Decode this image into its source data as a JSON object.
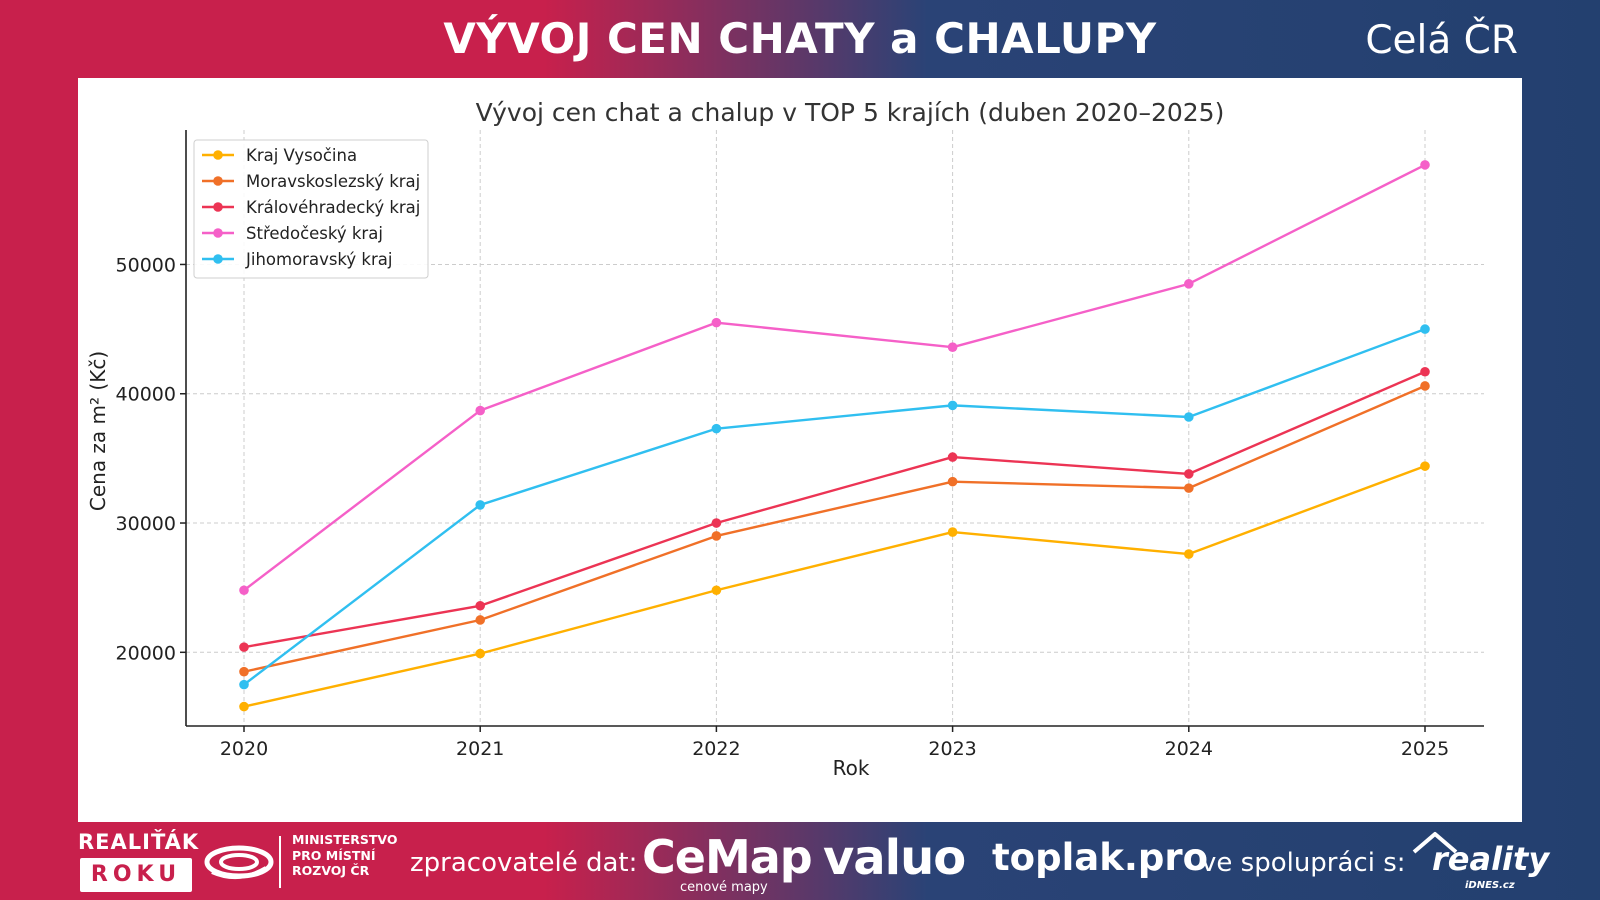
{
  "header": {
    "title": "VÝVOJ CEN CHATY a CHALUPY",
    "region": "Celá ČR"
  },
  "colors": {
    "bg_left": "#c8204c",
    "bg_right": "#23406f",
    "series": [
      "#ffb000",
      "#f07028",
      "#ec3454",
      "#f560c8",
      "#30bff0"
    ]
  },
  "chart_data": {
    "type": "line",
    "title": "Vývoj cen chat a chalup v TOP 5 krajích (duben 2020–2025)",
    "xlabel": "Rok",
    "ylabel": "Cena za m² (Kč)",
    "x": [
      "2020",
      "2021",
      "2022",
      "2023",
      "2024",
      "2025"
    ],
    "yticks": [
      "20000",
      "30000",
      "40000",
      "50000"
    ],
    "ylim": [
      14300,
      60400
    ],
    "grid": true,
    "legend_position": "top-left",
    "series": [
      {
        "name": "Kraj Vysočina",
        "color": "#ffb000",
        "values": [
          15800,
          19900,
          24800,
          29300,
          27600,
          34400
        ]
      },
      {
        "name": "Moravskoslezský kraj",
        "color": "#f07028",
        "values": [
          18500,
          22500,
          29000,
          33200,
          32700,
          40600
        ]
      },
      {
        "name": "Královéhradecký kraj",
        "color": "#ec3454",
        "values": [
          20400,
          23600,
          30000,
          35100,
          33800,
          41700
        ]
      },
      {
        "name": "Středočeský kraj",
        "color": "#f560c8",
        "values": [
          24800,
          38700,
          45500,
          43600,
          48500,
          57700
        ]
      },
      {
        "name": "Jihomoravský kraj",
        "color": "#30bff0",
        "values": [
          17500,
          31400,
          37300,
          39100,
          38200,
          45000
        ]
      }
    ]
  },
  "footer": {
    "realitak": "REALIŤÁK",
    "roku": "ROKU",
    "ministry_line1": "MINISTERSTVO",
    "ministry_line2": "PRO MÍSTNÍ",
    "ministry_line3": "ROZVOJ ČR",
    "data_label": "zpracovatelé dat:",
    "cemap": "CeMap",
    "cemap_sub": "cenové mapy",
    "valuo": "valuo",
    "toplak": "toplak.pro",
    "cooperation": "ve spolupráci s:",
    "reality": "reality",
    "reality_sub": "iDNES.cz"
  }
}
